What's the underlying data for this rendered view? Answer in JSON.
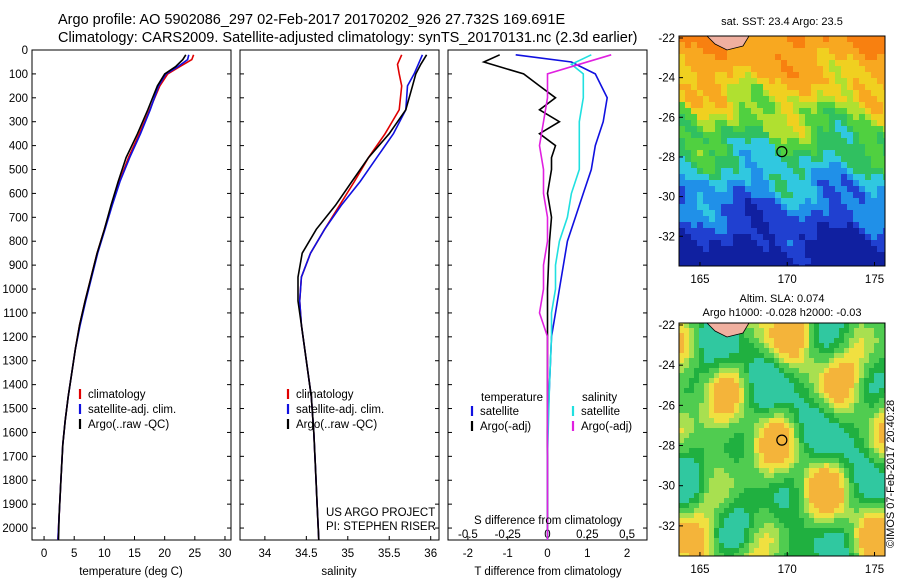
{
  "header": {
    "line1": "Argo profile: AO 5902086_297 02-Feb-2017 20170202_926 27.732S 169.691E",
    "line2": "Climatology: CARS2009. Satellite-adjusted climatology: synTS_20170131.nc (2.3d earlier)"
  },
  "credit": "©IMOS 07-Feb-2017 20:40:28",
  "colors": {
    "climatology": "#e00000",
    "satellite": "#1010e0",
    "argo": "#000000",
    "argo_adj": "#e020e0",
    "satellite_s": "#20e0e0"
  },
  "chart_data": [
    {
      "id": "temperature",
      "type": "line",
      "xlabel": "temperature (deg C)",
      "xlim": [
        -2,
        31
      ],
      "xticks": [
        "0",
        "5",
        "10",
        "15",
        "20",
        "25",
        "30"
      ],
      "xtick_values": [
        0,
        5,
        10,
        15,
        20,
        25,
        30
      ],
      "ylim": [
        0,
        2050
      ],
      "yticks": [
        "0",
        "100",
        "200",
        "300",
        "400",
        "500",
        "600",
        "700",
        "800",
        "900",
        "1000",
        "1100",
        "1200",
        "1300",
        "1400",
        "1500",
        "1600",
        "1700",
        "1800",
        "1900",
        "2000"
      ],
      "ytick_values": [
        0,
        100,
        200,
        300,
        400,
        500,
        600,
        700,
        800,
        900,
        1000,
        1100,
        1200,
        1300,
        1400,
        1500,
        1600,
        1700,
        1800,
        1900,
        2000
      ],
      "legend": [
        "climatology",
        "satellite-adj. clim.",
        "Argo(..raw -QC)"
      ],
      "series": [
        {
          "name": "climatology",
          "color": "#e00000",
          "x": [
            24.8,
            24.5,
            22.5,
            20.5,
            19.2,
            17.5,
            15.8,
            14.0,
            12.5,
            11.2,
            10.0,
            8.8,
            7.8,
            6.8,
            5.9,
            5.2,
            4.6,
            4.0,
            3.5,
            3.1,
            2.8,
            2.5,
            2.3
          ],
          "y": [
            20,
            40,
            70,
            100,
            150,
            250,
            350,
            450,
            550,
            650,
            750,
            850,
            950,
            1050,
            1150,
            1250,
            1350,
            1450,
            1550,
            1650,
            1800,
            1950,
            2050
          ]
        },
        {
          "name": "satellite-adj. clim.",
          "color": "#1010e0",
          "x": [
            24.0,
            23.8,
            22.2,
            20.2,
            19.0,
            17.6,
            16.0,
            14.2,
            12.6,
            11.3,
            10.1,
            8.9,
            7.9,
            6.9,
            6.0,
            5.2,
            4.6,
            4.0,
            3.5,
            3.1,
            2.8,
            2.5,
            2.3
          ],
          "y": [
            20,
            40,
            70,
            100,
            150,
            250,
            350,
            450,
            550,
            650,
            750,
            850,
            950,
            1050,
            1150,
            1250,
            1350,
            1450,
            1550,
            1650,
            1800,
            1950,
            2050
          ]
        },
        {
          "name": "Argo(..raw -QC)",
          "color": "#000000",
          "x": [
            23.5,
            23.0,
            21.8,
            20.0,
            18.8,
            17.2,
            15.5,
            13.6,
            12.3,
            11.1,
            10.0,
            8.8,
            7.8,
            6.8,
            5.9,
            5.2,
            4.6,
            4.0,
            3.5,
            3.1,
            2.8,
            2.5,
            2.4
          ],
          "y": [
            20,
            40,
            70,
            100,
            150,
            250,
            350,
            450,
            550,
            650,
            750,
            850,
            950,
            1050,
            1150,
            1250,
            1350,
            1450,
            1550,
            1650,
            1800,
            1950,
            2050
          ]
        }
      ]
    },
    {
      "id": "salinity",
      "type": "line",
      "xlabel": "salinity",
      "xlim": [
        33.7,
        36.1
      ],
      "xticks": [
        "34",
        "34.5",
        "35",
        "35.5",
        "36"
      ],
      "xtick_values": [
        34,
        34.5,
        35,
        35.5,
        36
      ],
      "ylim": [
        0,
        2050
      ],
      "legend": [
        "climatology",
        "satellite-adj. clim.",
        "Argo(..raw -QC)"
      ],
      "note1": "US ARGO PROJECT",
      "note2": "PI: STEPHEN RISER",
      "series": [
        {
          "name": "climatology",
          "color": "#e00000",
          "x": [
            35.65,
            35.6,
            35.62,
            35.65,
            35.62,
            35.45,
            35.25,
            35.08,
            34.9,
            34.72,
            34.55,
            34.44,
            34.42,
            34.44,
            34.48,
            34.52,
            34.56,
            34.59,
            34.61,
            34.63,
            34.65
          ],
          "y": [
            20,
            60,
            100,
            150,
            250,
            350,
            450,
            550,
            650,
            750,
            850,
            950,
            1050,
            1150,
            1250,
            1350,
            1450,
            1600,
            1750,
            1900,
            2050
          ]
        },
        {
          "name": "satellite-adj. clim.",
          "color": "#1010e0",
          "x": [
            35.9,
            35.85,
            35.8,
            35.72,
            35.7,
            35.55,
            35.35,
            35.15,
            34.92,
            34.72,
            34.55,
            34.44,
            34.42,
            34.44,
            34.48,
            34.52,
            34.56,
            34.59,
            34.61,
            34.63,
            34.65
          ],
          "y": [
            20,
            60,
            100,
            150,
            250,
            350,
            450,
            550,
            650,
            750,
            850,
            950,
            1050,
            1150,
            1250,
            1350,
            1450,
            1600,
            1750,
            1900,
            2050
          ]
        },
        {
          "name": "Argo(..raw -QC)",
          "color": "#000000",
          "x": [
            35.95,
            35.88,
            35.82,
            35.78,
            35.7,
            35.5,
            35.25,
            35.05,
            34.85,
            34.62,
            34.45,
            34.4,
            34.4,
            34.44,
            34.48,
            34.52,
            34.56,
            34.59,
            34.61,
            34.63,
            34.65
          ],
          "y": [
            20,
            60,
            100,
            150,
            250,
            350,
            450,
            550,
            650,
            750,
            850,
            950,
            1050,
            1150,
            1250,
            1350,
            1450,
            1600,
            1750,
            1900,
            2050
          ]
        }
      ]
    },
    {
      "id": "difference",
      "type": "line",
      "xlabel": "T difference from climatology",
      "xlabel_top": "S difference from climatology",
      "xlim": [
        -2.5,
        2.5
      ],
      "xticks": [
        "-2",
        "-1",
        "0",
        "1",
        "2"
      ],
      "xtick_values": [
        -2,
        -1,
        0,
        1,
        2
      ],
      "top_ticks": [
        "-0.5",
        "-0.25",
        "0",
        "0.25",
        "0.5"
      ],
      "top_tick_values": [
        -2,
        -1,
        0,
        1,
        2
      ],
      "ylim": [
        0,
        2050
      ],
      "legend_left_title": "temperature",
      "legend_right_title": "salinity",
      "legend_left": [
        "satellite",
        "Argo(-adj)"
      ],
      "legend_right": [
        "satellite",
        "Argo(-adj)"
      ],
      "series": [
        {
          "name": "satellite",
          "color": "#1010e0",
          "x": [
            -0.8,
            0.6,
            1.2,
            1.5,
            1.4,
            1.2,
            1.1,
            0.9,
            0.7,
            0.5,
            0.4,
            0.3,
            0.2,
            0.1,
            0.05,
            0.0,
            0.0,
            0.0
          ],
          "y": [
            20,
            50,
            100,
            200,
            300,
            400,
            500,
            600,
            700,
            800,
            900,
            1000,
            1100,
            1200,
            1400,
            1600,
            1800,
            2050
          ]
        },
        {
          "name": "Argo(-adj)",
          "color": "#000000",
          "x": [
            -1.2,
            -1.6,
            -0.6,
            -0.2,
            0.2,
            -0.2,
            0.3,
            -0.2,
            0.2,
            0.1,
            0.1,
            0.0,
            0.1,
            0.05,
            0.0,
            0.0,
            0.0,
            0.0,
            0.0
          ],
          "y": [
            20,
            50,
            100,
            150,
            200,
            250,
            300,
            350,
            400,
            450,
            500,
            600,
            700,
            800,
            1000,
            1200,
            1500,
            1800,
            2050
          ]
        },
        {
          "name": "satellite",
          "color": "#20e0e0",
          "x": [
            1.1,
            0.6,
            0.9,
            0.9,
            0.8,
            0.8,
            0.8,
            0.6,
            0.5,
            0.3,
            0.2,
            0.2,
            0.1,
            0.1,
            0.05,
            0.0,
            0.0
          ],
          "y": [
            20,
            60,
            100,
            200,
            300,
            400,
            500,
            600,
            700,
            800,
            900,
            1000,
            1100,
            1200,
            1400,
            1700,
            2050
          ]
        },
        {
          "name": "Argo(-adj)",
          "color": "#e020e0",
          "x": [
            1.6,
            0.8,
            0.0,
            0.0,
            -0.1,
            -0.2,
            -0.1,
            -0.1,
            0.0,
            0.0,
            -0.1,
            -0.1,
            -0.2,
            0.0,
            0.0,
            0.0,
            0.0
          ],
          "y": [
            20,
            60,
            100,
            200,
            300,
            400,
            500,
            600,
            700,
            800,
            900,
            1000,
            1100,
            1200,
            1400,
            1700,
            2050
          ]
        }
      ]
    },
    {
      "id": "sst_map",
      "type": "heatmap",
      "title": "sat. SST: 23.4  Argo: 23.5",
      "xticks": [
        "165",
        "170",
        "175"
      ],
      "xtick_values": [
        165,
        170,
        175
      ],
      "yticks": [
        "-22",
        "-24",
        "-26",
        "-28",
        "-30",
        "-32"
      ],
      "ytick_values": [
        -22,
        -24,
        -26,
        -28,
        -30,
        -32
      ],
      "xlim": [
        163.8,
        175.6
      ],
      "ylim": [
        -33.5,
        -21.9
      ],
      "marker": {
        "lon": 169.691,
        "lat": -27.732
      }
    },
    {
      "id": "sla_map",
      "type": "heatmap",
      "title": "Altim. SLA: 0.074",
      "subtitle": "Argo h1000: -0.028 h2000: -0.03",
      "xticks": [
        "165",
        "170",
        "175"
      ],
      "xtick_values": [
        165,
        170,
        175
      ],
      "yticks": [
        "-22",
        "-24",
        "-26",
        "-28",
        "-30",
        "-32"
      ],
      "ytick_values": [
        -22,
        -24,
        -26,
        -28,
        -30,
        -32
      ],
      "xlim": [
        163.8,
        175.6
      ],
      "ylim": [
        -33.5,
        -21.9
      ],
      "marker": {
        "lon": 169.691,
        "lat": -27.732
      }
    }
  ]
}
